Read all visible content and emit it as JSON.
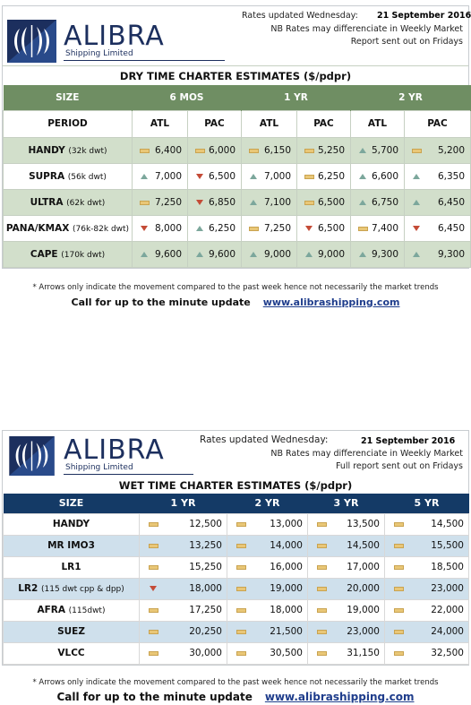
{
  "dry": {
    "brand": "ALIBRA",
    "brand_sub": "Shipping Limited",
    "updated_label": "Rates updated Wednesday:",
    "date": "21 September 2016",
    "note1": "NB Rates may differenciate in Weekly Market",
    "note2": "Report sent out on Fridays",
    "title": "DRY TIME CHARTER ESTIMATES ($/pdpr)",
    "size_label": "SIZE",
    "period_label": "PERIOD",
    "groups": [
      "6 MOS",
      "1 YR",
      "2 YR"
    ],
    "subcols": [
      "ATL",
      "PAC",
      "ATL",
      "PAC",
      "ATL",
      "PAC"
    ],
    "rows": [
      {
        "name": "HANDY",
        "detail": "(32k dwt)",
        "cells": [
          {
            "arrow": "flat",
            "value": "6,400"
          },
          {
            "arrow": "flat",
            "value": "6,000"
          },
          {
            "arrow": "flat",
            "value": "6,150"
          },
          {
            "arrow": "flat",
            "value": "5,250"
          },
          {
            "arrow": "up",
            "value": "5,700"
          },
          {
            "arrow": "flat",
            "value": "5,200"
          }
        ]
      },
      {
        "name": "SUPRA",
        "detail": "(56k dwt)",
        "cells": [
          {
            "arrow": "up",
            "value": "7,000"
          },
          {
            "arrow": "down",
            "value": "6,500"
          },
          {
            "arrow": "up",
            "value": "7,000"
          },
          {
            "arrow": "flat",
            "value": "6,250"
          },
          {
            "arrow": "up",
            "value": "6,600"
          },
          {
            "arrow": "up",
            "value": "6,350"
          }
        ]
      },
      {
        "name": "ULTRA",
        "detail": "(62k dwt)",
        "cells": [
          {
            "arrow": "flat",
            "value": "7,250"
          },
          {
            "arrow": "down",
            "value": "6,850"
          },
          {
            "arrow": "up",
            "value": "7,100"
          },
          {
            "arrow": "flat",
            "value": "6,500"
          },
          {
            "arrow": "up",
            "value": "6,750"
          },
          {
            "arrow": "up",
            "value": "6,450"
          }
        ]
      },
      {
        "name": "PANA/KMAX",
        "detail": "(76k-82k dwt)",
        "cells": [
          {
            "arrow": "down",
            "value": "8,000"
          },
          {
            "arrow": "up",
            "value": "6,250"
          },
          {
            "arrow": "flat",
            "value": "7,250"
          },
          {
            "arrow": "down",
            "value": "6,500"
          },
          {
            "arrow": "flat",
            "value": "7,400"
          },
          {
            "arrow": "down",
            "value": "6,450"
          }
        ]
      },
      {
        "name": "CAPE",
        "detail": "(170k dwt)",
        "cells": [
          {
            "arrow": "up",
            "value": "9,600"
          },
          {
            "arrow": "up",
            "value": "9,600"
          },
          {
            "arrow": "up",
            "value": "9,000"
          },
          {
            "arrow": "up",
            "value": "9,000"
          },
          {
            "arrow": "up",
            "value": "9,300"
          },
          {
            "arrow": "up",
            "value": "9,300"
          }
        ]
      }
    ],
    "footnote": "* Arrows only indicate the movement compared to the past week hence not necessarily the market trends",
    "call_text": "Call for up to the minute update",
    "website": "www.alibrashipping.com"
  },
  "wet": {
    "brand": "ALIBRA",
    "brand_sub": "Shipping Limited",
    "updated_label": "Rates updated Wednesday:",
    "date": "21 September 2016",
    "note1": "NB Rates may differenciate in Weekly Market",
    "note2": "Full report sent out on Fridays",
    "title": "WET TIME CHARTER ESTIMATES ($/pdpr)",
    "size_label": "SIZE",
    "cols": [
      "1 YR",
      "2 YR",
      "3 YR",
      "5 YR"
    ],
    "rows": [
      {
        "name": "HANDY",
        "detail": "",
        "cells": [
          {
            "arrow": "flat",
            "value": "12,500"
          },
          {
            "arrow": "flat",
            "value": "13,000"
          },
          {
            "arrow": "flat",
            "value": "13,500"
          },
          {
            "arrow": "flat",
            "value": "14,500"
          }
        ]
      },
      {
        "name": "MR IMO3",
        "detail": "",
        "cells": [
          {
            "arrow": "flat",
            "value": "13,250"
          },
          {
            "arrow": "flat",
            "value": "14,000"
          },
          {
            "arrow": "flat",
            "value": "14,500"
          },
          {
            "arrow": "flat",
            "value": "15,500"
          }
        ]
      },
      {
        "name": "LR1",
        "detail": "",
        "cells": [
          {
            "arrow": "flat",
            "value": "15,250"
          },
          {
            "arrow": "flat",
            "value": "16,000"
          },
          {
            "arrow": "flat",
            "value": "17,000"
          },
          {
            "arrow": "flat",
            "value": "18,500"
          }
        ]
      },
      {
        "name": "LR2",
        "detail": "(115 dwt cpp & dpp)",
        "cells": [
          {
            "arrow": "down",
            "value": "18,000"
          },
          {
            "arrow": "flat",
            "value": "19,000"
          },
          {
            "arrow": "flat",
            "value": "20,000"
          },
          {
            "arrow": "flat",
            "value": "23,000"
          }
        ]
      },
      {
        "name": "AFRA",
        "detail": "(115dwt)",
        "cells": [
          {
            "arrow": "flat",
            "value": "17,250"
          },
          {
            "arrow": "flat",
            "value": "18,000"
          },
          {
            "arrow": "flat",
            "value": "19,000"
          },
          {
            "arrow": "flat",
            "value": "22,000"
          }
        ]
      },
      {
        "name": "SUEZ",
        "detail": "",
        "cells": [
          {
            "arrow": "flat",
            "value": "20,250"
          },
          {
            "arrow": "flat",
            "value": "21,500"
          },
          {
            "arrow": "flat",
            "value": "23,000"
          },
          {
            "arrow": "flat",
            "value": "24,000"
          }
        ]
      },
      {
        "name": "VLCC",
        "detail": "",
        "cells": [
          {
            "arrow": "flat",
            "value": "30,000"
          },
          {
            "arrow": "flat",
            "value": "30,500"
          },
          {
            "arrow": "flat",
            "value": "31,150"
          },
          {
            "arrow": "flat",
            "value": "32,500"
          }
        ]
      }
    ],
    "footnote": "* Arrows only indicate the movement compared to the past week hence not necessarily the market trends",
    "call_text": "Call for up to the minute update",
    "website": "www.alibrashipping.com"
  },
  "colors": {
    "dry_header": "#6f8e63",
    "dry_band": "#d2dfcb",
    "wet_header": "#143a66",
    "wet_band": "#cfe0ec",
    "brand": "#1c2f5e",
    "arrow_up": "#7ca79c",
    "arrow_down": "#c44b37",
    "arrow_flat": "#e9c777"
  }
}
